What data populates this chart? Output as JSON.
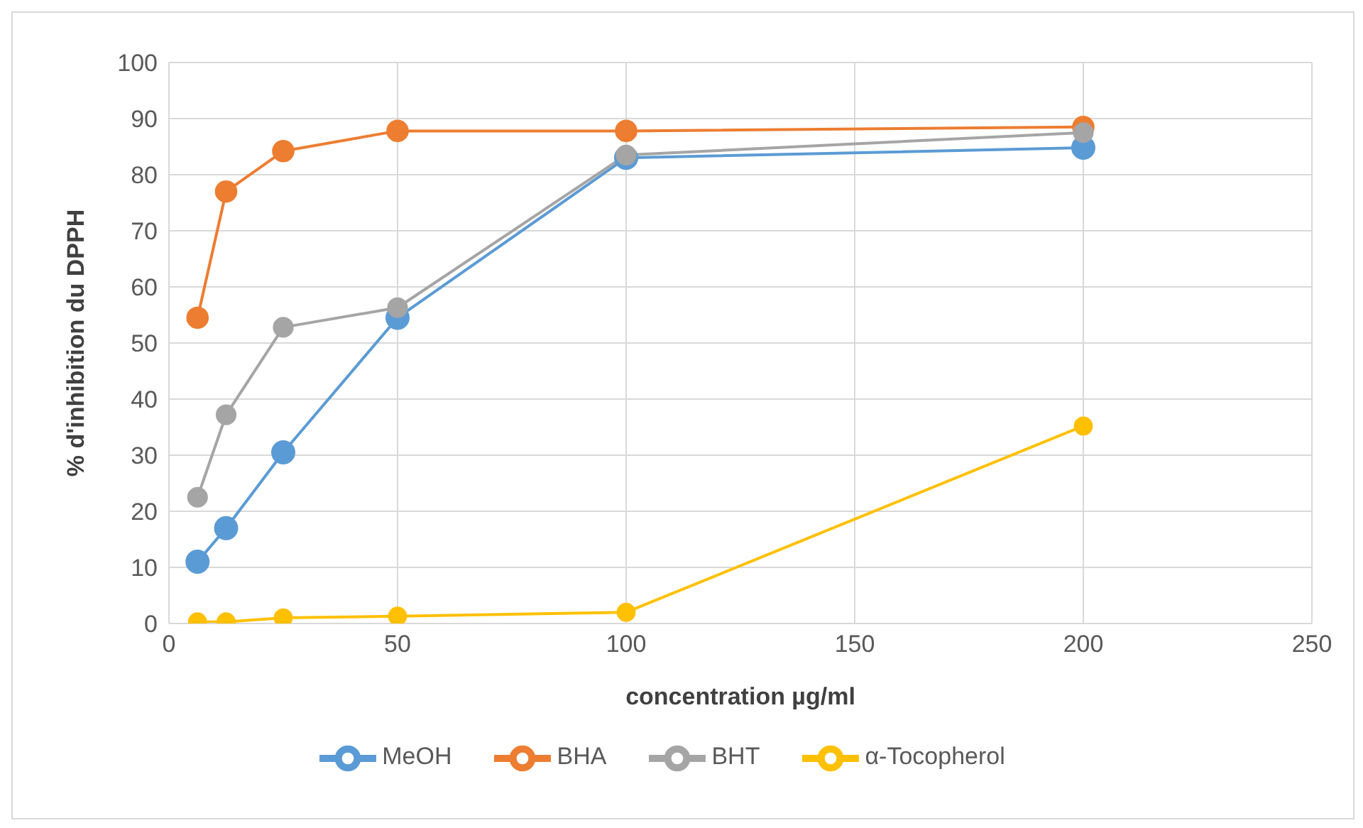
{
  "chart_data": {
    "type": "line",
    "xlabel": "concentration µg/ml",
    "ylabel": "% d'inhibition du DPPH",
    "x": [
      6.25,
      12.5,
      25,
      50,
      100,
      200
    ],
    "series": [
      {
        "name": "MeOH",
        "color": "#5b9bd5",
        "values": [
          11,
          17,
          30.5,
          54.5,
          83,
          84.8
        ]
      },
      {
        "name": "BHA",
        "color": "#ed7d31",
        "values": [
          54.5,
          77,
          84.2,
          87.8,
          87.8,
          88.5
        ]
      },
      {
        "name": "BHT",
        "color": "#a5a5a5",
        "values": [
          22.5,
          37.2,
          52.8,
          56.3,
          83.5,
          87.5
        ]
      },
      {
        "name": "α-Tocopherol",
        "color": "#ffc000",
        "values": [
          0.3,
          0.3,
          1,
          1.3,
          2,
          35.2
        ]
      }
    ],
    "xlim": [
      0,
      250
    ],
    "xticks": [
      0,
      50,
      100,
      150,
      200,
      250
    ],
    "ylim": [
      0,
      100
    ],
    "yticks": [
      0,
      10,
      20,
      30,
      40,
      50,
      60,
      70,
      80,
      90,
      100
    ],
    "grid": true,
    "legend": "bottom",
    "marker": "circle",
    "line_style": "solid"
  }
}
